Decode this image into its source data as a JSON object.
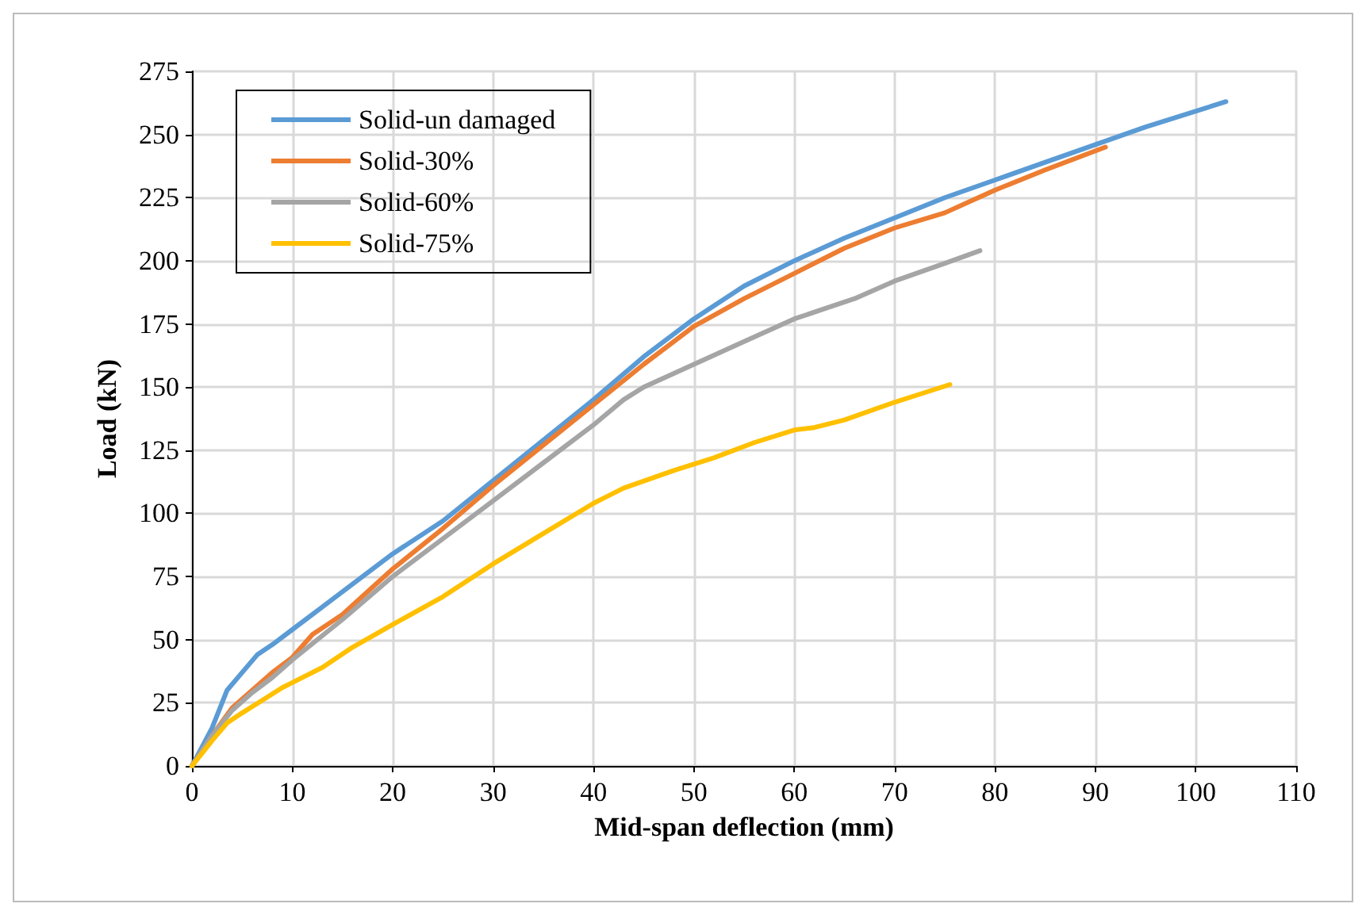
{
  "chart_data": {
    "type": "line",
    "xlabel": "Mid-span deflection (mm)",
    "ylabel": "Load (kN)",
    "xlim": [
      0,
      110
    ],
    "xticks": [
      0,
      10,
      20,
      30,
      40,
      50,
      60,
      70,
      80,
      90,
      100,
      110
    ],
    "ylim": [
      0,
      275
    ],
    "yticks": [
      0,
      25,
      50,
      75,
      100,
      125,
      150,
      175,
      200,
      225,
      250,
      275
    ],
    "grid": true,
    "legend": "top left",
    "marker": "none",
    "line_style": "solid",
    "series": [
      {
        "name": "Solid-un damaged",
        "color": "#5b9bd5",
        "x": [
          0,
          2,
          3.5,
          5,
          6.5,
          8,
          10,
          13,
          16,
          20,
          25,
          30,
          35,
          40,
          45,
          50,
          55,
          60,
          65,
          70,
          75,
          80,
          85,
          90,
          95,
          103
        ],
        "values": [
          0,
          15,
          30,
          37,
          44,
          48,
          54,
          63,
          72,
          84,
          97,
          113,
          129,
          145,
          162,
          177,
          190,
          200,
          209,
          217,
          225,
          232,
          239,
          246,
          253,
          263
        ]
      },
      {
        "name": "Solid-30%",
        "color": "#ed7d31",
        "x": [
          0,
          2,
          4,
          6,
          8,
          10,
          12,
          15,
          20,
          25,
          30,
          35,
          40,
          45,
          50,
          55,
          60,
          65,
          70,
          75,
          80,
          85,
          91
        ],
        "values": [
          0,
          12,
          23,
          30,
          37,
          43,
          52,
          60,
          78,
          94,
          111,
          127,
          143,
          159,
          174,
          185,
          195,
          205,
          213,
          219,
          228,
          236,
          245
        ]
      },
      {
        "name": "Solid-60%",
        "color": "#a5a5a5",
        "x": [
          0,
          2,
          4,
          6,
          8,
          10,
          15,
          20,
          25,
          30,
          35,
          40,
          43,
          45,
          50,
          55,
          60,
          63,
          66,
          70,
          75,
          78.5
        ],
        "values": [
          0,
          12,
          22,
          29,
          35,
          42,
          58,
          75,
          90,
          105,
          120,
          135,
          145,
          150,
          159,
          168,
          177,
          181,
          185,
          192,
          199,
          204
        ]
      },
      {
        "name": "Solid-75%",
        "color": "#ffc000",
        "x": [
          0,
          2,
          3.5,
          5,
          7,
          9,
          10,
          13,
          16,
          20,
          25,
          30,
          35,
          40,
          43,
          48,
          52,
          56,
          60,
          62,
          65,
          70,
          75.5
        ],
        "values": [
          0,
          10,
          17,
          21,
          26,
          31,
          33,
          39,
          47,
          56,
          67,
          80,
          92,
          104,
          110,
          117,
          122,
          128,
          133,
          134,
          137,
          144,
          151
        ]
      }
    ]
  }
}
